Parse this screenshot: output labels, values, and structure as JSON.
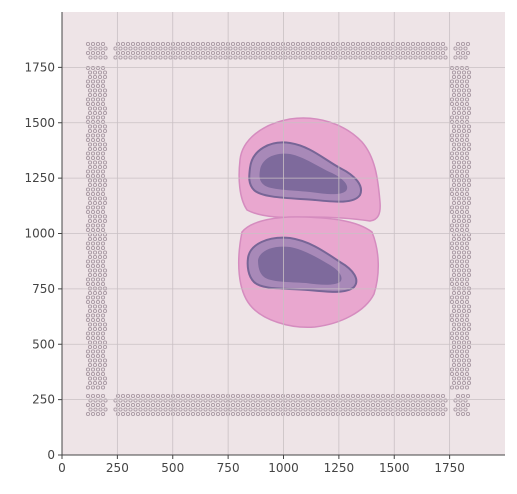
{
  "figure": {
    "background_color": "#eee4e7",
    "tissue_colors": {
      "stroma": "#e9a7cf",
      "edge": "#d58cbf",
      "core": "#776596",
      "core_light": "#a889b8"
    },
    "fiducial_color": "#a99aa4"
  },
  "axes": {
    "x_ticks": [
      {
        "value": 0,
        "label": "0"
      },
      {
        "value": 250,
        "label": "250"
      },
      {
        "value": 500,
        "label": "500"
      },
      {
        "value": 750,
        "label": "750"
      },
      {
        "value": 1000,
        "label": "1000"
      },
      {
        "value": 1250,
        "label": "1250"
      },
      {
        "value": 1500,
        "label": "1500"
      },
      {
        "value": 1750,
        "label": "1750"
      }
    ],
    "y_ticks": [
      {
        "value": 0,
        "label": "0"
      },
      {
        "value": 250,
        "label": "250"
      },
      {
        "value": 500,
        "label": "500"
      },
      {
        "value": 750,
        "label": "750"
      },
      {
        "value": 1000,
        "label": "1000"
      },
      {
        "value": 1250,
        "label": "1250"
      },
      {
        "value": 1500,
        "label": "1500"
      },
      {
        "value": 1750,
        "label": "1750"
      }
    ],
    "xlim": [
      0,
      2000
    ],
    "ylim": [
      0,
      2000
    ],
    "grid": true,
    "grid_color": "#c9c0c4",
    "tick_color": "#444444"
  }
}
